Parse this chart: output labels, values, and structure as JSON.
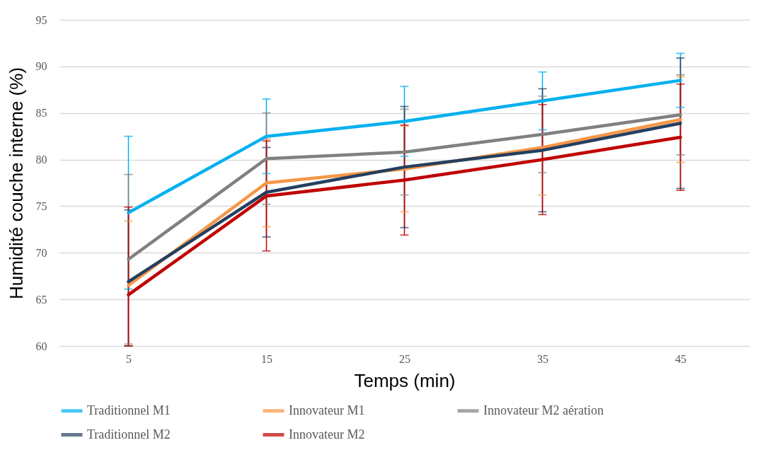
{
  "chart_data": {
    "type": "line",
    "xlabel": "Temps (min)",
    "ylabel": "Humidité couche interne (%)",
    "categories": [
      "5",
      "15",
      "25",
      "35",
      "45"
    ],
    "ylim": [
      60,
      95
    ],
    "yticks": [
      60,
      65,
      70,
      75,
      80,
      85,
      90,
      95
    ],
    "grid": "y",
    "legend": "bottom",
    "line_style": "solid",
    "series": [
      {
        "name": "Traditionnel M1",
        "color": "#00b0f0",
        "values": [
          74.3,
          82.5,
          84.1,
          86.3,
          88.5
        ],
        "errors": [
          8.2,
          4.0,
          3.75,
          3.1,
          2.9
        ]
      },
      {
        "name": "Innovateur M1",
        "color": "#f79646",
        "values": [
          66.5,
          77.5,
          79.0,
          81.3,
          84.3
        ],
        "errors": [
          [
            60,
            73.4
          ],
          4.7,
          4.6,
          5.1,
          4.6
        ]
      },
      {
        "name": "Innovateur M2 aération",
        "color": "#808080",
        "values": [
          69.3,
          80.1,
          80.8,
          82.7,
          84.8
        ],
        "errors": [
          9.1,
          4.9,
          4.6,
          4.1,
          4.3
        ]
      },
      {
        "name": "Traditionnel M2",
        "color": "#243f60",
        "values": [
          66.9,
          76.5,
          79.2,
          81.0,
          83.9
        ],
        "errors": [
          [
            60,
            74.6
          ],
          4.8,
          6.5,
          6.6,
          7.0
        ]
      },
      {
        "name": "Innovateur M2",
        "color": "#c00000",
        "values": [
          65.5,
          76.1,
          77.8,
          80.0,
          82.4
        ],
        "errors": [
          [
            60,
            74.9
          ],
          5.9,
          5.9,
          5.9,
          5.7
        ]
      }
    ]
  }
}
